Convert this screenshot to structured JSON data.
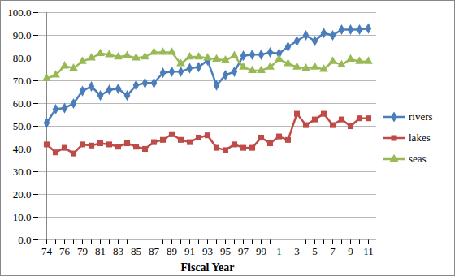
{
  "chart_data": {
    "type": "line",
    "x_label": "Fiscal Year",
    "categories": [
      "74",
      null,
      "76",
      null,
      "79",
      null,
      "81",
      null,
      "83",
      null,
      "85",
      null,
      "87",
      null,
      "89",
      null,
      "91",
      null,
      "93",
      null,
      "95",
      null,
      "97",
      null,
      "99",
      null,
      "1",
      null,
      "3",
      null,
      "5",
      null,
      "7",
      null,
      "9",
      null,
      "11"
    ],
    "series": [
      {
        "name": "rivers",
        "color": "#4a7ebb",
        "marker": "diamond",
        "values": [
          51.5,
          57.5,
          58,
          60,
          65.5,
          67.5,
          63.5,
          66,
          66.5,
          63.5,
          68,
          69,
          69,
          73.5,
          74,
          74,
          75.5,
          76,
          79,
          68,
          72.5,
          74,
          81,
          81.5,
          81.5,
          82.5,
          82,
          85,
          87.5,
          90,
          87.5,
          91,
          90,
          92.5,
          92.5,
          92.5,
          93
        ]
      },
      {
        "name": "lakes",
        "color": "#be4b48",
        "marker": "square",
        "values": [
          42,
          38.5,
          40.5,
          38,
          42,
          41.5,
          42.5,
          42,
          41,
          42.5,
          41,
          40,
          43,
          44,
          46.5,
          44,
          43,
          45,
          46,
          40.5,
          39.5,
          42,
          40.5,
          40.5,
          45,
          42.5,
          45.5,
          44,
          55.5,
          50.5,
          53,
          55.5,
          50.5,
          53,
          50,
          53.5,
          53.5
        ]
      },
      {
        "name": "seas",
        "color": "#98b954",
        "marker": "triangle",
        "values": [
          71,
          72.5,
          76.5,
          75.5,
          78.5,
          80,
          82,
          81.5,
          80.5,
          81,
          80,
          80.5,
          82.5,
          82.5,
          82.5,
          77.5,
          80.5,
          80.5,
          80,
          79.5,
          79,
          81,
          76,
          74.5,
          74.5,
          76,
          79.5,
          77.5,
          76,
          75.5,
          76,
          75,
          78.5,
          77,
          79.5,
          78.5,
          78.5
        ]
      }
    ],
    "ylim": [
      0,
      100
    ],
    "yticks": [
      {
        "value": 0,
        "label": "0.0"
      },
      {
        "value": 10,
        "label": "10.0"
      },
      {
        "value": 20,
        "label": "20.0"
      },
      {
        "value": 30,
        "label": "30.0"
      },
      {
        "value": 40,
        "label": "40.0"
      },
      {
        "value": 50,
        "label": "50.0"
      },
      {
        "value": 60,
        "label": "60.0"
      },
      {
        "value": 70,
        "label": "70.0"
      },
      {
        "value": 80,
        "label": "80.0"
      },
      {
        "value": 90,
        "label": "90.0"
      },
      {
        "value": 100,
        "label": "100.0"
      }
    ],
    "grid": true,
    "legend": "right"
  }
}
